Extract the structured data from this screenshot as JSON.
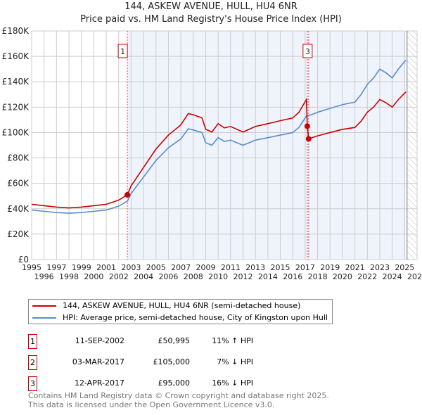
{
  "title": "144, ASKEW AVENUE, HULL, HU4 6NR",
  "subtitle": "Price paid vs. HM Land Registry's House Price Index (HPI)",
  "colors": {
    "property": "#cc0000",
    "hpi": "#5b8bd0",
    "shade": "#eef3fc"
  },
  "chart_data": {
    "type": "line",
    "xlim": [
      1995,
      2026
    ],
    "ylim": [
      0,
      180000
    ],
    "yticks": [
      "£0",
      "£20K",
      "£40K",
      "£60K",
      "£80K",
      "£100K",
      "£120K",
      "£140K",
      "£160K",
      "£180K"
    ],
    "xticks": [
      "1995",
      "1996",
      "1997",
      "1998",
      "1999",
      "2000",
      "2001",
      "2002",
      "2003",
      "2004",
      "2005",
      "2006",
      "2007",
      "2008",
      "2009",
      "2010",
      "2011",
      "2012",
      "2013",
      "2014",
      "2015",
      "2016",
      "2017",
      "2018",
      "2019",
      "2020",
      "2021",
      "2022",
      "2023",
      "2024",
      "2025",
      "2026"
    ],
    "shaded_range": [
      2002.7,
      2025.2
    ],
    "series": [
      {
        "name": "144, ASKEW AVENUE, HULL, HU4 6NR (semi-detached house)",
        "x": [
          1995,
          1996,
          1997,
          1998,
          1999,
          2000,
          2001,
          2002,
          2002.7,
          2003,
          2004,
          2005,
          2006,
          2007,
          2007.6,
          2008,
          2008.7,
          2009,
          2009.5,
          2010,
          2010.5,
          2011,
          2012,
          2013,
          2014,
          2015,
          2016,
          2016.5,
          2017.1,
          2017.17,
          2017.28,
          2017.5,
          2018,
          2019,
          2020,
          2021,
          2021.5,
          2022,
          2022.5,
          2023,
          2023.5,
          2024,
          2024.5,
          2025,
          2025.1
        ],
        "y": [
          43.5,
          42.4,
          41.3,
          40.7,
          41.3,
          42.4,
          43.5,
          46.8,
          51,
          58,
          72.5,
          87,
          98,
          106,
          115,
          114,
          111.5,
          102.6,
          100.4,
          107,
          103.7,
          104.8,
          100.4,
          104.8,
          107,
          109.3,
          111.5,
          116,
          126,
          105,
          95,
          95.8,
          97.4,
          100,
          102.5,
          104,
          109,
          116,
          120,
          126,
          123.5,
          120,
          126,
          131,
          132
        ]
      },
      {
        "name": "HPI: Average price, semi-detached house, City of Kingston upon Hull",
        "x": [
          1995,
          1996,
          1997,
          1998,
          1999,
          2000,
          2001,
          2002,
          2002.7,
          2003,
          2004,
          2005,
          2006,
          2007,
          2007.6,
          2008,
          2008.7,
          2009,
          2009.5,
          2010,
          2010.5,
          2011,
          2012,
          2013,
          2014,
          2015,
          2016,
          2016.5,
          2017.1,
          2017.5,
          2018,
          2019,
          2020,
          2021,
          2021.5,
          2022,
          2022.5,
          2023,
          2023.5,
          2024,
          2024.5,
          2025,
          2025.1
        ],
        "y": [
          39,
          38,
          37,
          36.5,
          37,
          38,
          39,
          42,
          46,
          52,
          65,
          78,
          88,
          95,
          103,
          102,
          100,
          92,
          90,
          96,
          93,
          94,
          90,
          94,
          96,
          98,
          100,
          104,
          113,
          114,
          116,
          119,
          122,
          124,
          130,
          138,
          143,
          150,
          147,
          143,
          150,
          156,
          157
        ]
      }
    ],
    "y_units": "thousands GBP",
    "sales": [
      {
        "label": "1",
        "x": 2002.7,
        "y": 50.995,
        "date": "11-SEP-2002",
        "price": "£50,995",
        "hpi": "11% ↑ HPI"
      },
      {
        "label": "2",
        "x": 2017.17,
        "y": 105,
        "date": "03-MAR-2017",
        "price": "£105,000",
        "hpi": "7% ↓ HPI"
      },
      {
        "label": "3",
        "x": 2017.28,
        "y": 95,
        "date": "12-APR-2017",
        "price": "£95,000",
        "hpi": "16% ↓ HPI"
      }
    ]
  },
  "legend": {
    "property": "144, ASKEW AVENUE, HULL, HU4 6NR (semi-detached house)",
    "hpi": "HPI: Average price, semi-detached house, City of Kingston upon Hull"
  },
  "footer": {
    "line1": "Contains HM Land Registry data © Crown copyright and database right 2025.",
    "line2": "This data is licensed under the Open Government Licence v3.0."
  }
}
